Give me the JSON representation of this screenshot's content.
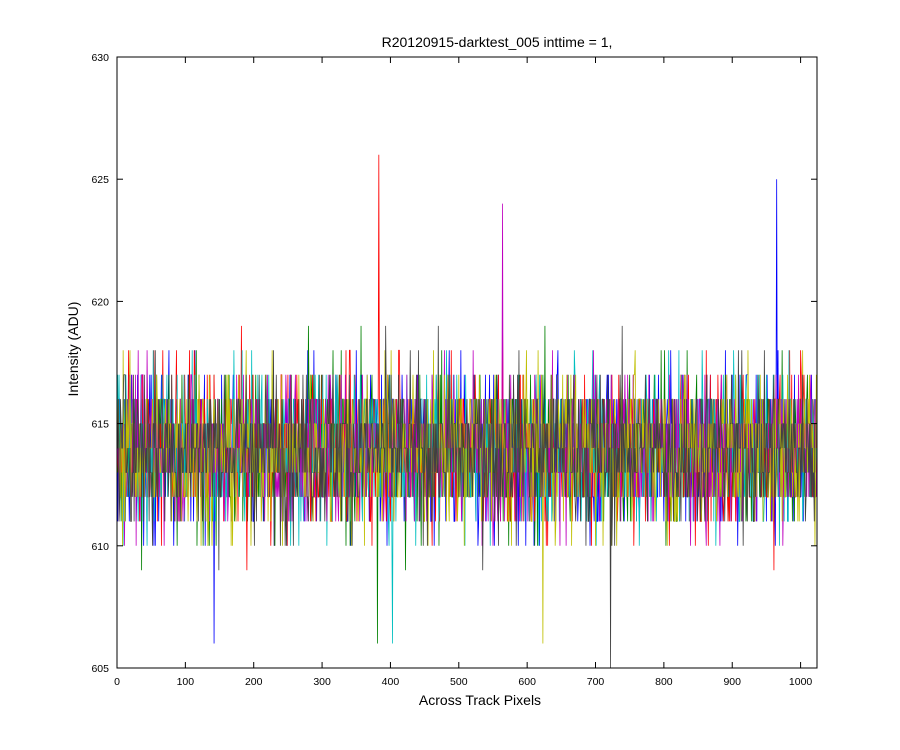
{
  "chart_data": {
    "type": "line",
    "title": "R20120915-darktest_005 inttime = 1,",
    "xlabel": "Across Track Pixels",
    "ylabel": "Intensity (ADU)",
    "xlim": [
      0,
      1024
    ],
    "ylim": [
      605,
      630
    ],
    "xticks": [
      0,
      100,
      200,
      300,
      400,
      500,
      600,
      700,
      800,
      900,
      1000
    ],
    "yticks": [
      605,
      610,
      615,
      620,
      625,
      630
    ],
    "grid": false,
    "legend": "none",
    "series_colors": [
      "#0000ff",
      "#008000",
      "#ff0000",
      "#00bfbf",
      "#bf00bf",
      "#bfbf00",
      "#404040"
    ],
    "noise": {
      "mean": 614,
      "min": 605,
      "max": 626,
      "integer_valued": true,
      "num_series": 7,
      "num_pixels": 1024
    },
    "notable_extremes": [
      {
        "x": 383,
        "y": 626
      },
      {
        "x": 965,
        "y": 625
      },
      {
        "x": 564,
        "y": 624
      },
      {
        "x": 722,
        "y": 605
      },
      {
        "x": 142,
        "y": 606
      },
      {
        "x": 381,
        "y": 606
      },
      {
        "x": 403,
        "y": 606
      },
      {
        "x": 623,
        "y": 606
      }
    ]
  }
}
